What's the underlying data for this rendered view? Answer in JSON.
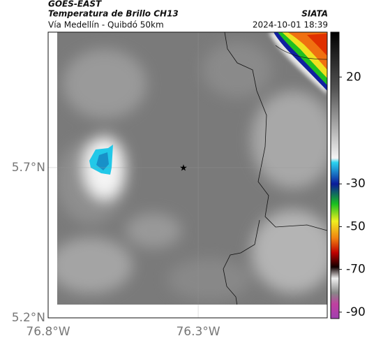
{
  "header": {
    "title": "GOES-EAST",
    "subtitle": "Temperatura de Brillo CH13",
    "route": "Vía Medellín - Quibdó 50km",
    "source": "SIATA",
    "datetime": "2024-10-01 18:39"
  },
  "map": {
    "xlim": [
      -76.8,
      -75.87
    ],
    "ylim": [
      5.2,
      6.151
    ],
    "xticks": [
      {
        "value": -76.8,
        "label": "76.8°W"
      },
      {
        "value": -76.3,
        "label": "76.3°W"
      }
    ],
    "yticks": [
      {
        "value": 5.7,
        "label": "5.7°N"
      },
      {
        "value": 5.2,
        "label": "5.2°N"
      }
    ]
  },
  "colorbar": {
    "lim": [
      -93,
      41
    ],
    "ticks": [
      20,
      -30,
      -50,
      -70,
      -90
    ]
  }
}
